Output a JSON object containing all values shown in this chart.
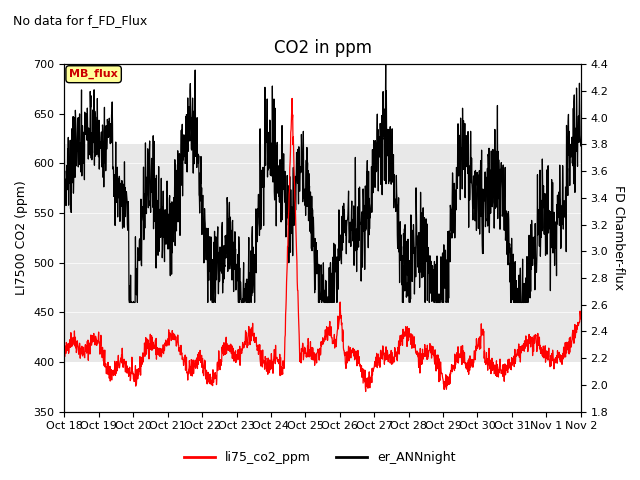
{
  "title": "CO2 in ppm",
  "suptitle": "No data for f_FD_Flux",
  "ylabel_left": "LI7500 CO2 (ppm)",
  "ylabel_right": "FD Chamber-flux",
  "ylim_left": [
    350,
    700
  ],
  "ylim_right": [
    1.8,
    4.4
  ],
  "yticks_left": [
    350,
    400,
    450,
    500,
    550,
    600,
    650,
    700
  ],
  "yticks_right": [
    1.8,
    2.0,
    2.2,
    2.4,
    2.6,
    2.8,
    3.0,
    3.2,
    3.4,
    3.6,
    3.8,
    4.0,
    4.2,
    4.4
  ],
  "xticklabels": [
    "Oct 18",
    "Oct 19",
    "Oct 20",
    "Oct 21",
    "Oct 22",
    "Oct 23",
    "Oct 24",
    "Oct 25",
    "Oct 26",
    "Oct 27",
    "Oct 28",
    "Oct 29",
    "Oct 30",
    "Oct 31",
    "Nov 1",
    "Nov 2"
  ],
  "shaded_region": [
    400,
    620
  ],
  "legend_entries": [
    "li75_co2_ppm",
    "er_ANNnight"
  ],
  "legend_colors": [
    "#ff0000",
    "#000000"
  ],
  "mb_flux_box_color": "#ffff99",
  "mb_flux_text_color": "#cc0000",
  "line_red_color": "#ff0000",
  "line_black_color": "#000000",
  "background_color": "#ffffff",
  "shaded_color": "#e8e8e8"
}
